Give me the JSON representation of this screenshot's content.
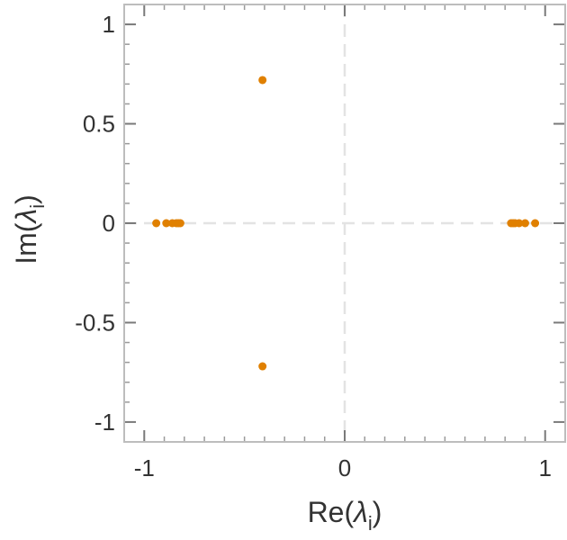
{
  "chart_data": {
    "type": "scatter",
    "xlabel": "Re(λi)",
    "ylabel": "Im(λi)",
    "xlabel_parts": {
      "prefix": "Re(",
      "symbol": "λ",
      "sub": "i",
      "suffix": ")"
    },
    "ylabel_parts": {
      "prefix": "Im(",
      "symbol": "λ",
      "sub": "i",
      "suffix": ")"
    },
    "xlim": [
      -1.1,
      1.1
    ],
    "ylim": [
      -1.1,
      1.1
    ],
    "xticks": [
      -1,
      0,
      1
    ],
    "xtick_labels": [
      "-1",
      "0",
      "1"
    ],
    "yticks": [
      -1,
      -0.5,
      0,
      0.5,
      1
    ],
    "ytick_labels": [
      "-1",
      "-0.5",
      "0",
      "0.5",
      "1"
    ],
    "grid": false,
    "zero_lines": true,
    "marker_color": "#e08000",
    "series": [
      {
        "x": [
          -0.41,
          -0.41,
          -0.94,
          -0.89,
          -0.86,
          -0.84,
          -0.83,
          -0.82,
          0.83,
          0.84,
          0.85,
          0.87,
          0.9,
          0.95
        ],
        "y": [
          0.72,
          -0.72,
          0,
          0,
          0,
          0,
          0,
          0,
          0,
          0,
          0,
          0,
          0,
          0
        ]
      }
    ]
  }
}
